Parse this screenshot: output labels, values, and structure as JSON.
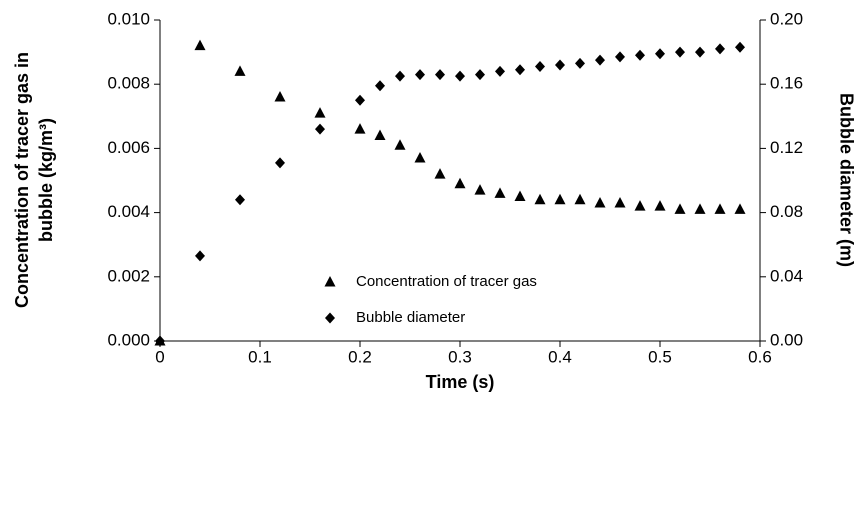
{
  "chart_data": {
    "type": "scatter",
    "x_label": "Time (s)",
    "y_label": [
      "Concentration of tracer gas in",
      "bubble (kg/m³)"
    ],
    "y2_label": "Bubble diameter (m)",
    "x": [
      0,
      0.04,
      0.08,
      0.12,
      0.16,
      0.2,
      0.22,
      0.24,
      0.26,
      0.28,
      0.3,
      0.32,
      0.34,
      0.36,
      0.38,
      0.4,
      0.42,
      0.44,
      0.46,
      0.48,
      0.5,
      0.52,
      0.54,
      0.56,
      0.58
    ],
    "series": [
      {
        "name": "Concentration of tracer gas",
        "color": "#000000",
        "marker": "triangle",
        "values": [
          0,
          0.0092,
          0.0084,
          0.0076,
          0.0071,
          0.0066,
          0.0064,
          0.0061,
          0.0057,
          0.0052,
          0.0049,
          0.0047,
          0.0046,
          0.0045,
          0.0044,
          0.0044,
          0.0044,
          0.0043,
          0.0043,
          0.0042,
          0.0042,
          0.0041,
          0.0041,
          0.0041,
          0.0041
        ]
      },
      {
        "name": "Bubble diameter",
        "color": "#000000",
        "marker": "diamond",
        "axis": "y2",
        "values": [
          0,
          0.053,
          0.088,
          0.111,
          0.132,
          0.15,
          0.159,
          0.165,
          0.166,
          0.166,
          0.165,
          0.166,
          0.168,
          0.169,
          0.171,
          0.172,
          0.173,
          0.175,
          0.177,
          0.178,
          0.179,
          0.18,
          0.18,
          0.182,
          0.183
        ]
      }
    ],
    "xlim": [
      0,
      0.6
    ],
    "xticks": [
      0,
      0.1,
      0.2,
      0.3,
      0.4,
      0.5,
      0.6
    ],
    "ylim": [
      0,
      0.01
    ],
    "yticks": [
      {
        "value": 0,
        "label": "0.000"
      },
      {
        "value": 0.002,
        "label": "0.002"
      },
      {
        "value": 0.004,
        "label": "0.004"
      },
      {
        "value": 0.006,
        "label": "0.006"
      },
      {
        "value": 0.008,
        "label": "0.008"
      },
      {
        "value": 0.01,
        "label": "0.010"
      }
    ],
    "y2lim": [
      0,
      0.2
    ],
    "y2ticks": [
      {
        "value": 0,
        "label": "0.00"
      },
      {
        "value": 0.04,
        "label": "0.04"
      },
      {
        "value": 0.08,
        "label": "0.08"
      },
      {
        "value": 0.12,
        "label": "0.12"
      },
      {
        "value": 0.16,
        "label": "0.16"
      },
      {
        "value": 0.2,
        "label": "0.20"
      }
    ],
    "grid": false,
    "legend": "center"
  }
}
